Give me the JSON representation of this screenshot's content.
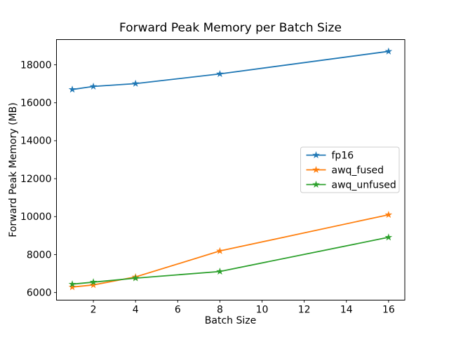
{
  "figure": {
    "background_color": "#ffffff",
    "spine_color": "#000000",
    "text_color": "#000000",
    "legend_border_color": "#cccccc"
  },
  "chart_data": {
    "type": "line",
    "title": "Forward Peak Memory per Batch Size",
    "xlabel": "Batch Size",
    "ylabel": "Forward Peak Memory (MB)",
    "x": [
      1,
      2,
      4,
      8,
      16
    ],
    "series": [
      {
        "name": "fp16",
        "color": "#1f77b4",
        "marker": "star",
        "values": [
          16700,
          16860,
          17010,
          17520,
          18710
        ]
      },
      {
        "name": "awq_fused",
        "color": "#ff7f0e",
        "marker": "star",
        "values": [
          6290,
          6400,
          6820,
          8190,
          10100
        ]
      },
      {
        "name": "awq_unfused",
        "color": "#2ca02c",
        "marker": "star",
        "values": [
          6440,
          6550,
          6760,
          7110,
          8910
        ]
      }
    ],
    "x_ticks": [
      2,
      4,
      6,
      8,
      10,
      12,
      14,
      16
    ],
    "y_ticks": [
      6000,
      8000,
      10000,
      12000,
      14000,
      16000,
      18000
    ],
    "xlim": [
      0.25,
      16.77
    ],
    "ylim": [
      5600,
      19330
    ],
    "grid": false,
    "legend": {
      "position": "center right",
      "entries": [
        "fp16",
        "awq_fused",
        "awq_unfused"
      ]
    }
  }
}
